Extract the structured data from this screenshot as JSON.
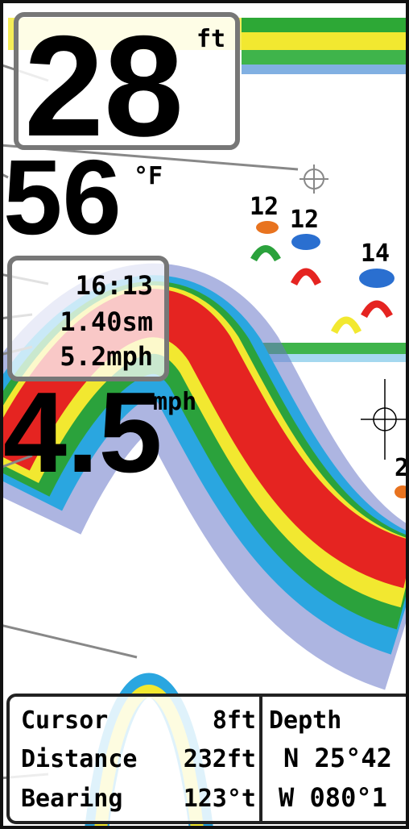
{
  "depth": {
    "value": "28",
    "unit": "ft"
  },
  "temperature": {
    "value": "56",
    "unit": "°F"
  },
  "info_box": {
    "time": "16:13",
    "distance": "1.40sm",
    "speed": "5.2mph"
  },
  "speed": {
    "value": "4.5",
    "unit": "mph"
  },
  "fish_labels": [
    "12",
    "12",
    "14",
    "2"
  ],
  "cursor_box": {
    "rows": [
      [
        "Cursor",
        "8ft"
      ],
      [
        "Distance",
        "232ft"
      ],
      [
        "Bearing",
        "123°t"
      ]
    ]
  },
  "position_box": {
    "title": "Depth",
    "latitude": "N 25°42",
    "longitude": "W 080°1"
  }
}
